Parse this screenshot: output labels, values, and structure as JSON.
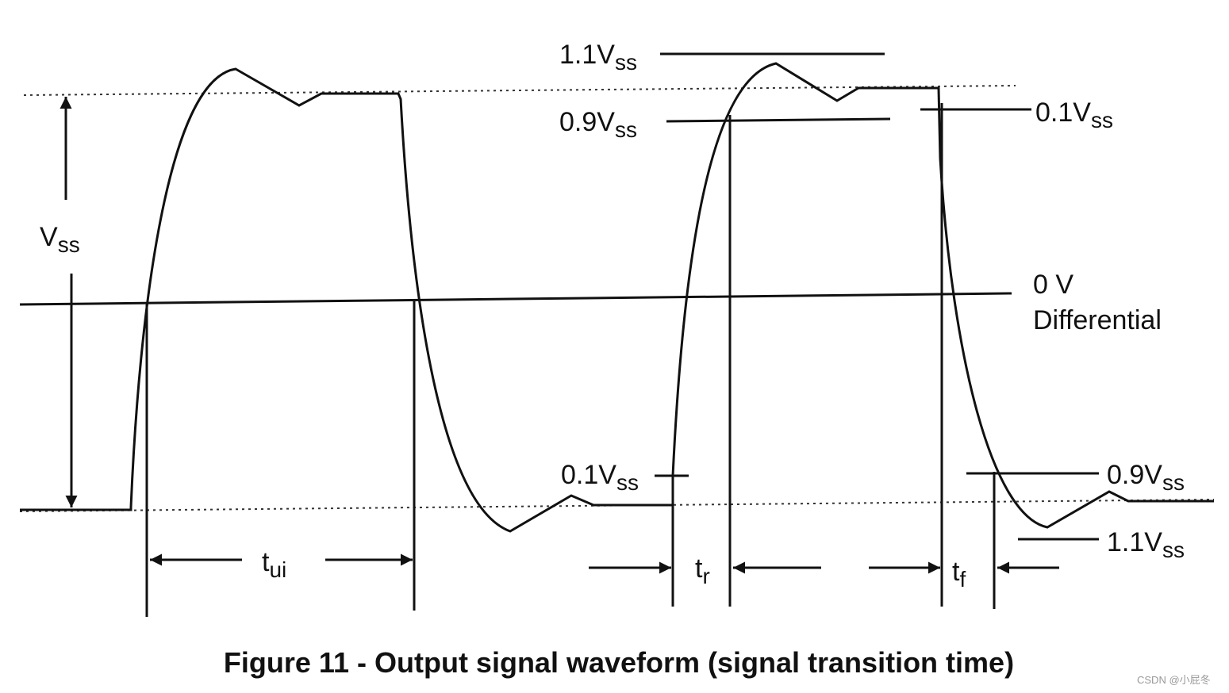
{
  "labels": {
    "vss": {
      "base": "V",
      "sub": "ss"
    },
    "top_1_1": {
      "base": "1.1V",
      "sub": "ss"
    },
    "top_0_9": {
      "base": "0.9V",
      "sub": "ss"
    },
    "right_0_1": {
      "base": "0.1V",
      "sub": "ss"
    },
    "zero": "0 V",
    "differential": "Differential",
    "low_0_1": {
      "base": "0.1V",
      "sub": "ss"
    },
    "low_0_9": {
      "base": "0.9V",
      "sub": "ss"
    },
    "low_1_1": {
      "base": "1.1V",
      "sub": "ss"
    },
    "tui": {
      "base": "t",
      "sub": "ui"
    },
    "tr": {
      "base": "t",
      "sub": "r"
    },
    "tf": {
      "base": "t",
      "sub": "f"
    }
  },
  "caption": "Figure 11 - Output signal waveform (signal transition time)",
  "watermark": "CSDN @小屁冬"
}
